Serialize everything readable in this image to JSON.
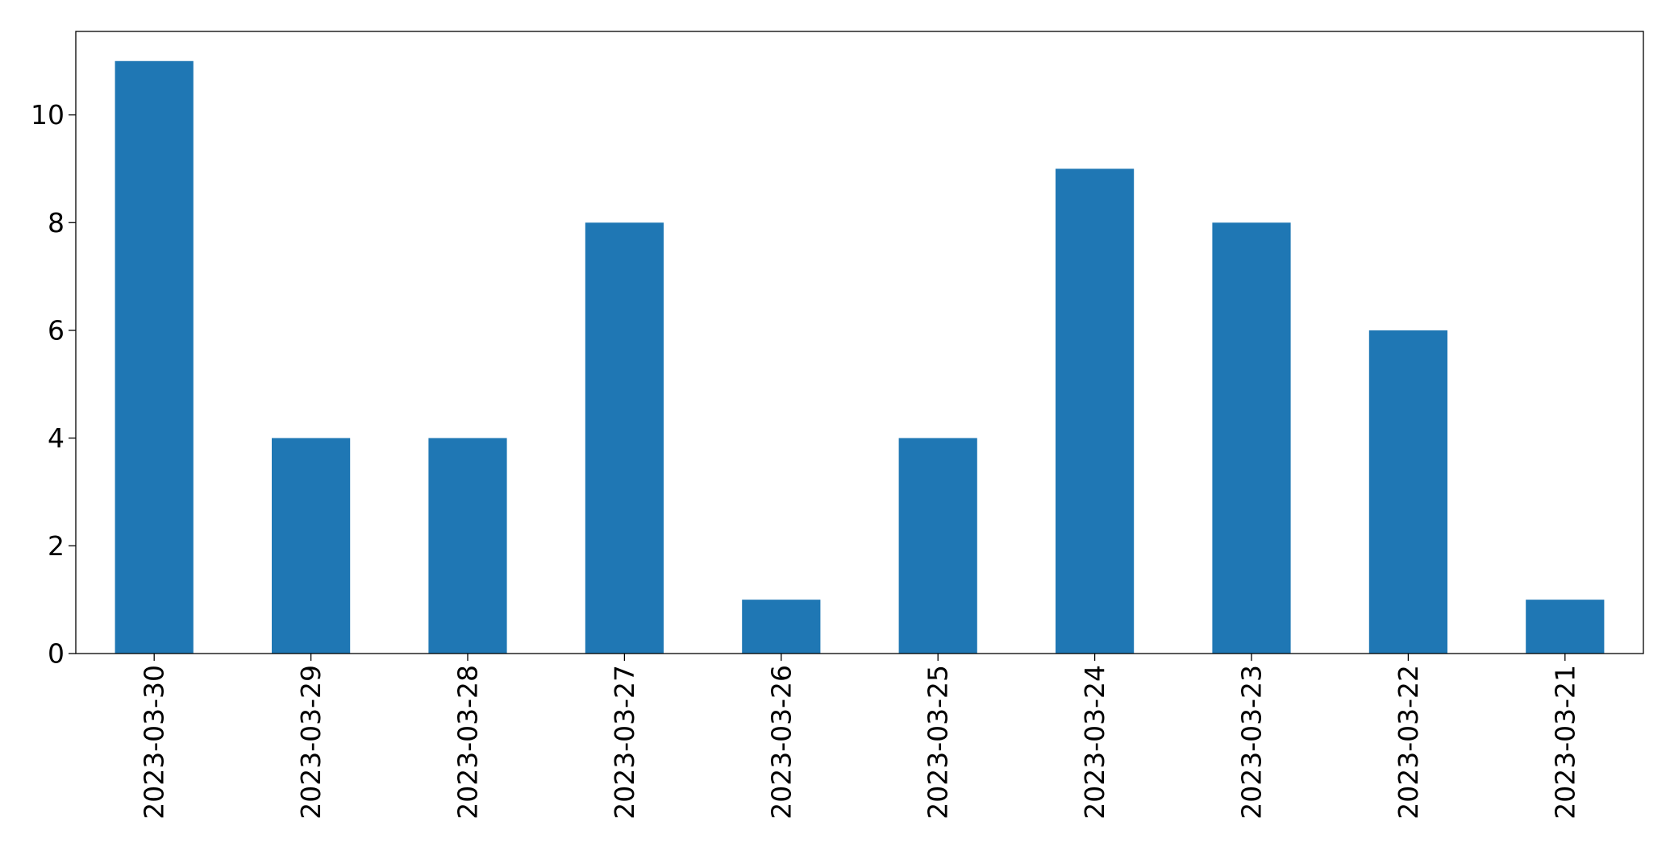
{
  "chart_data": {
    "type": "bar",
    "title": "",
    "xlabel": "",
    "ylabel": "",
    "categories": [
      "2023-03-30",
      "2023-03-29",
      "2023-03-28",
      "2023-03-27",
      "2023-03-26",
      "2023-03-25",
      "2023-03-24",
      "2023-03-23",
      "2023-03-22",
      "2023-03-21"
    ],
    "values": [
      11,
      4,
      4,
      8,
      1,
      4,
      9,
      8,
      6,
      1
    ],
    "ylim": [
      0,
      11.55
    ],
    "yticks": [
      0,
      2,
      4,
      6,
      8,
      10
    ],
    "bar_color": "#1f77b4",
    "legend": "none",
    "grid": false
  }
}
